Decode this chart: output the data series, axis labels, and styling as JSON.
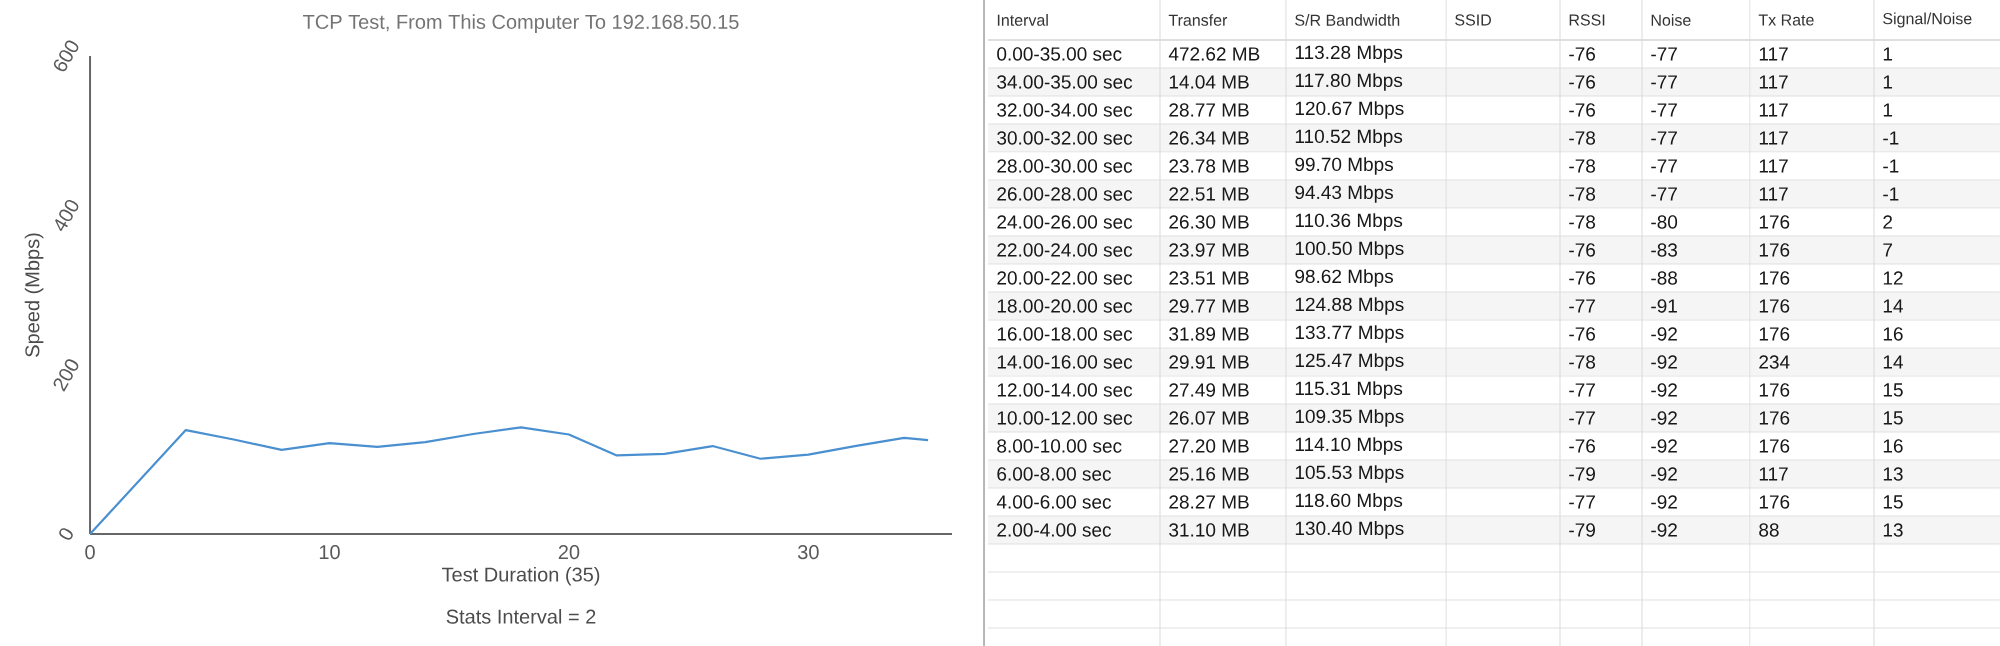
{
  "chart_data": [
    {
      "type": "line",
      "title": "TCP Test,  From This Computer To 192.168.50.15",
      "xlabel": "Test Duration (35)",
      "ylabel": "Speed (Mbps)",
      "annotations": [
        "Stats Interval = 2"
      ],
      "x": [
        0,
        4,
        6,
        8,
        10,
        12,
        14,
        16,
        18,
        20,
        22,
        24,
        26,
        28,
        30,
        32,
        34,
        35
      ],
      "series": [
        {
          "color": "#4a90d0",
          "values": [
            0,
            130.4,
            118.6,
            105.53,
            114.1,
            109.35,
            115.31,
            125.47,
            133.77,
            124.88,
            98.62,
            100.5,
            110.36,
            94.43,
            99.7,
            110.52,
            120.67,
            117.8
          ]
        }
      ],
      "xlim": [
        0,
        36
      ],
      "ylim": [
        0,
        600
      ],
      "xticks": [
        0,
        10,
        20,
        30
      ],
      "yticks": [
        0,
        200,
        400,
        600
      ]
    },
    {
      "type": "other",
      "categories": [
        "Interval",
        "Transfer",
        "S/R Bandwidth",
        "SSID",
        "RSSI",
        "Noise",
        "Tx Rate",
        "Signal/Noise"
      ],
      "cell_labels": [
        [
          "0.00-35.00 sec",
          "472.62 MB",
          "113.28 Mbps",
          null,
          "-76",
          "-77",
          "117",
          "1"
        ],
        [
          "34.00-35.00 sec",
          "14.04 MB",
          "117.80 Mbps",
          null,
          "-76",
          "-77",
          "117",
          "1"
        ],
        [
          "32.00-34.00 sec",
          "28.77 MB",
          "120.67 Mbps",
          null,
          "-76",
          "-77",
          "117",
          "1"
        ],
        [
          "30.00-32.00 sec",
          "26.34 MB",
          "110.52 Mbps",
          null,
          "-78",
          "-77",
          "117",
          "-1"
        ],
        [
          "28.00-30.00 sec",
          "23.78 MB",
          "99.70 Mbps",
          null,
          "-78",
          "-77",
          "117",
          "-1"
        ],
        [
          "26.00-28.00 sec",
          "22.51 MB",
          "94.43 Mbps",
          null,
          "-78",
          "-77",
          "117",
          "-1"
        ],
        [
          "24.00-26.00 sec",
          "26.30 MB",
          "110.36 Mbps",
          null,
          "-78",
          "-80",
          "176",
          "2"
        ],
        [
          "22.00-24.00 sec",
          "23.97 MB",
          "100.50 Mbps",
          null,
          "-76",
          "-83",
          "176",
          "7"
        ],
        [
          "20.00-22.00 sec",
          "23.51 MB",
          "98.62 Mbps",
          null,
          "-76",
          "-88",
          "176",
          "12"
        ],
        [
          "18.00-20.00 sec",
          "29.77 MB",
          "124.88 Mbps",
          null,
          "-77",
          "-91",
          "176",
          "14"
        ],
        [
          "16.00-18.00 sec",
          "31.89 MB",
          "133.77 Mbps",
          null,
          "-76",
          "-92",
          "176",
          "16"
        ],
        [
          "14.00-16.00 sec",
          "29.91 MB",
          "125.47 Mbps",
          null,
          "-78",
          "-92",
          "234",
          "14"
        ],
        [
          "12.00-14.00 sec",
          "27.49 MB",
          "115.31 Mbps",
          null,
          "-77",
          "-92",
          "176",
          "15"
        ],
        [
          "10.00-12.00 sec",
          "26.07 MB",
          "109.35 Mbps",
          null,
          "-77",
          "-92",
          "176",
          "15"
        ],
        [
          "8.00-10.00 sec",
          "27.20 MB",
          "114.10 Mbps",
          null,
          "-76",
          "-92",
          "176",
          "16"
        ],
        [
          "6.00-8.00 sec",
          "25.16 MB",
          "105.53 Mbps",
          null,
          "-79",
          "-92",
          "117",
          "13"
        ],
        [
          "4.00-6.00 sec",
          "28.27 MB",
          "118.60 Mbps",
          null,
          "-77",
          "-92",
          "176",
          "15"
        ],
        [
          "2.00-4.00 sec",
          "31.10 MB",
          "130.40 Mbps",
          null,
          "-79",
          "-92",
          "88",
          "13"
        ]
      ]
    }
  ]
}
